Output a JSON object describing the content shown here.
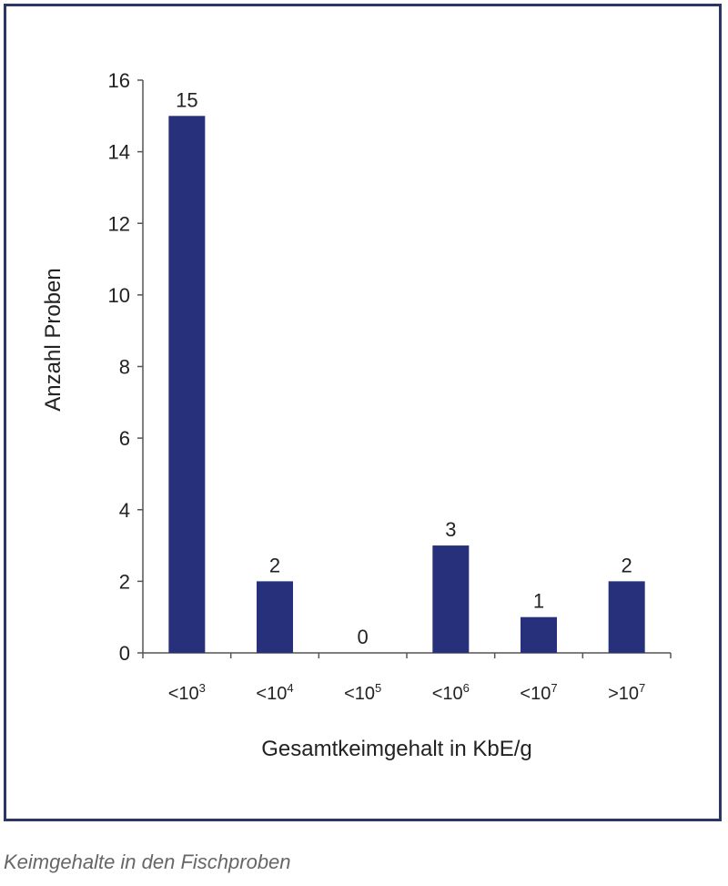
{
  "caption": "Keimgehalte in den Fischproben",
  "chart_data": {
    "type": "bar",
    "categories": [
      {
        "prefix": "<",
        "base": "10",
        "exp": "3"
      },
      {
        "prefix": "<",
        "base": "10",
        "exp": "4"
      },
      {
        "prefix": "<",
        "base": "10",
        "exp": "5"
      },
      {
        "prefix": "<",
        "base": "10",
        "exp": "6"
      },
      {
        "prefix": "<",
        "base": "10",
        "exp": "7"
      },
      {
        "prefix": ">",
        "base": "10",
        "exp": "7"
      }
    ],
    "values": [
      15,
      2,
      0,
      3,
      1,
      2
    ],
    "data_labels": [
      "15",
      "2",
      "0",
      "3",
      "1",
      "2"
    ],
    "xlabel": "Gesamtkeimgehalt in KbE/g",
    "ylabel": "Anzahl Proben",
    "ylim": [
      0,
      16
    ],
    "yticks": [
      0,
      2,
      4,
      6,
      8,
      10,
      12,
      14,
      16
    ],
    "grid": false,
    "legend": "none",
    "bar_color": "#27307a",
    "axis_color": "#555555"
  }
}
